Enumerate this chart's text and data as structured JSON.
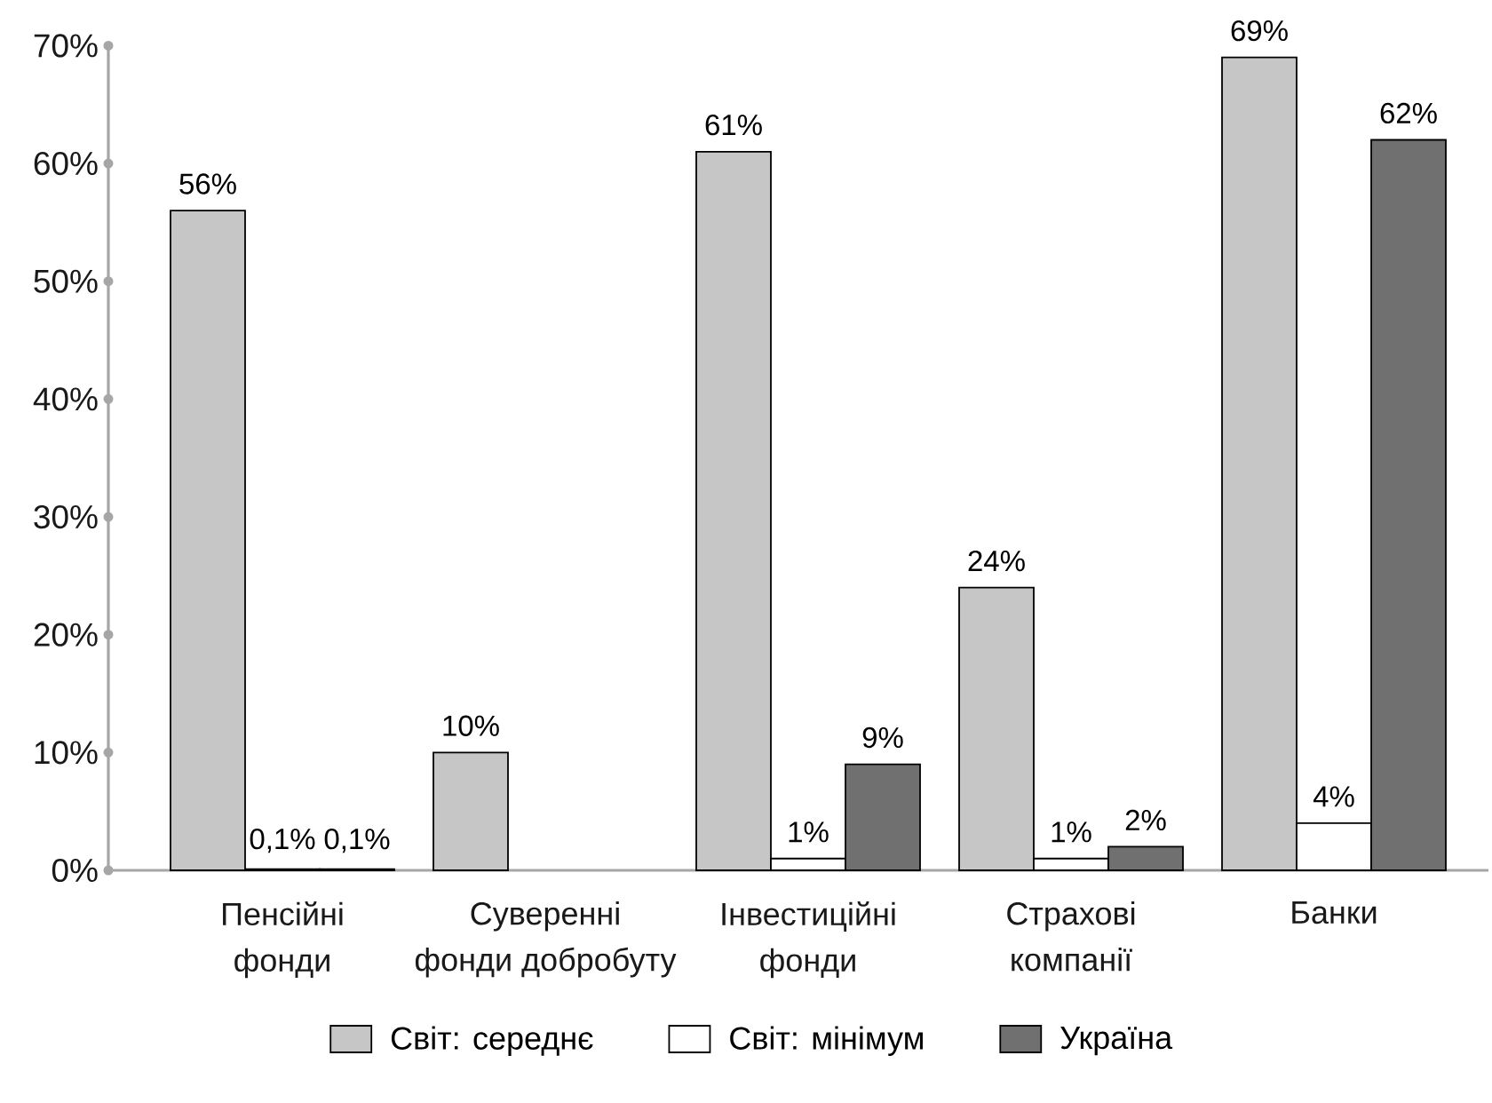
{
  "chart_data": {
    "type": "bar",
    "categories": [
      "Пенсійні фонди",
      "Суверенні фонди добробуту",
      "Інвестиційні фонди",
      "Страхові компанії",
      "Банки"
    ],
    "series": [
      {
        "name": "Світ: середнє",
        "color": "#c6c6c6",
        "values": [
          56,
          10,
          61,
          24,
          69
        ],
        "value_labels": [
          "56%",
          "10%",
          "61%",
          "24%",
          "69%"
        ]
      },
      {
        "name": "Світ: мінімум",
        "color": "#ffffff",
        "values": [
          0.1,
          null,
          1,
          1,
          4
        ],
        "value_labels": [
          "0,1%",
          null,
          "1%",
          "1%",
          "4%"
        ]
      },
      {
        "name": "Україна",
        "color": "#707070",
        "values": [
          0.1,
          null,
          9,
          2,
          62
        ],
        "value_labels": [
          "0,1%",
          null,
          "9%",
          "2%",
          "62%"
        ]
      }
    ],
    "ylim": [
      0,
      70
    ],
    "yticks": [
      {
        "value": 0,
        "label": "0%"
      },
      {
        "value": 10,
        "label": "10%"
      },
      {
        "value": 20,
        "label": "20%"
      },
      {
        "value": 30,
        "label": "30%"
      },
      {
        "value": 40,
        "label": "40%"
      },
      {
        "value": 50,
        "label": "50%"
      },
      {
        "value": 60,
        "label": "60%"
      },
      {
        "value": 70,
        "label": "70%"
      }
    ],
    "legend": "bottom"
  }
}
